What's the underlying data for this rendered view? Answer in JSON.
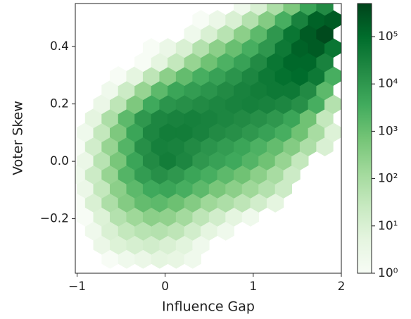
{
  "chart_data": {
    "type": "hexbin",
    "xlabel": "Influence Gap",
    "ylabel": "Voter Skew",
    "xlim": [
      -1.02,
      2.0
    ],
    "ylim": [
      -0.39,
      0.55
    ],
    "xticks": [
      {
        "value": -1,
        "label": "−1"
      },
      0,
      1,
      2
    ],
    "yticks": [
      {
        "value": -0.2,
        "label": "−0.2"
      },
      {
        "value": 0,
        "label": "0.0"
      },
      0.2,
      0.4
    ],
    "log_color": true,
    "clim": [
      1,
      500000
    ],
    "cticks": [
      {
        "value": 1,
        "label": "10⁰"
      },
      {
        "value": 10,
        "label": "10¹"
      },
      {
        "value": 100,
        "label": "10²"
      },
      {
        "value": 1000,
        "label": "10³"
      },
      {
        "value": 10000,
        "label": "10⁴"
      },
      {
        "value": 100000,
        "label": "10⁵"
      }
    ],
    "cmap": [
      "#f7fcf5",
      "#e5f5e0",
      "#c7e9c0",
      "#a1d99b",
      "#74c476",
      "#41ab5d",
      "#238b45",
      "#006d2c",
      "#00441b"
    ],
    "rows": [
      {
        "y": -0.34,
        "x": [
          -0.625,
          -0.4375,
          -0.25,
          -0.0625,
          0.125,
          0.3125
        ],
        "values": [
          1,
          2,
          3,
          5,
          4,
          2
        ]
      },
      {
        "y": -0.291,
        "x": [
          -0.71875,
          -0.53125,
          -0.34375,
          -0.15625,
          0.03125,
          0.21875,
          0.40625
        ],
        "values": [
          3,
          8,
          12,
          15,
          10,
          6,
          2
        ]
      },
      {
        "y": -0.242,
        "x": [
          -0.8125,
          -0.625,
          -0.4375,
          -0.25,
          -0.0625,
          0.125,
          0.3125,
          0.5,
          0.6875
        ],
        "values": [
          2,
          10,
          30,
          50,
          60,
          40,
          15,
          5,
          2
        ]
      },
      {
        "y": -0.193,
        "x": [
          -0.90625,
          -0.71875,
          -0.53125,
          -0.34375,
          -0.15625,
          0.03125,
          0.21875,
          0.40625,
          0.59375,
          0.78125,
          0.96875
        ],
        "values": [
          1,
          8,
          60,
          150,
          300,
          250,
          120,
          40,
          15,
          5,
          2
        ]
      },
      {
        "y": -0.144,
        "x": [
          -1,
          -0.8125,
          -0.625,
          -0.4375,
          -0.25,
          -0.0625,
          0.125,
          0.3125,
          0.5,
          0.6875,
          0.875,
          1.0625,
          1.25
        ],
        "values": [
          1,
          10,
          80,
          400,
          1200,
          1500,
          900,
          400,
          150,
          80,
          40,
          15,
          5
        ]
      },
      {
        "y": -0.095,
        "x": [
          -0.90625,
          -0.71875,
          -0.53125,
          -0.34375,
          -0.15625,
          0.03125,
          0.21875,
          0.40625,
          0.59375,
          0.78125,
          0.96875,
          1.15625,
          1.34375
        ],
        "values": [
          3,
          30,
          300,
          1500,
          4000,
          5000,
          3000,
          1500,
          600,
          300,
          150,
          60,
          20
        ]
      },
      {
        "y": -0.046,
        "x": [
          -1,
          -0.8125,
          -0.625,
          -0.4375,
          -0.25,
          -0.0625,
          0.125,
          0.3125,
          0.5,
          0.6875,
          0.875,
          1.0625,
          1.25,
          1.4375
        ],
        "values": [
          2,
          20,
          200,
          2000,
          8000,
          15000,
          10000,
          5000,
          3000,
          1500,
          800,
          300,
          100,
          20
        ]
      },
      {
        "y": 0.003,
        "x": [
          -0.90625,
          -0.71875,
          -0.53125,
          -0.34375,
          -0.15625,
          0.03125,
          0.21875,
          0.40625,
          0.59375,
          0.78125,
          0.96875,
          1.15625,
          1.34375,
          1.53125
        ],
        "values": [
          3,
          50,
          600,
          5000,
          20000,
          40000,
          25000,
          10000,
          6000,
          4000,
          2000,
          800,
          200,
          30
        ]
      },
      {
        "y": 0.052,
        "x": [
          -1,
          -0.8125,
          -0.625,
          -0.4375,
          -0.25,
          -0.0625,
          0.125,
          0.3125,
          0.5,
          0.6875,
          0.875,
          1.0625,
          1.25,
          1.4375,
          1.625,
          1.8125
        ],
        "values": [
          1,
          15,
          200,
          2000,
          15000,
          35000,
          30000,
          20000,
          12000,
          8000,
          5000,
          2500,
          1200,
          400,
          80,
          10
        ]
      },
      {
        "y": 0.101,
        "x": [
          -0.90625,
          -0.71875,
          -0.53125,
          -0.34375,
          -0.15625,
          0.03125,
          0.21875,
          0.40625,
          0.59375,
          0.78125,
          0.96875,
          1.15625,
          1.34375,
          1.53125,
          1.71875,
          1.90625
        ],
        "values": [
          2,
          30,
          500,
          5000,
          25000,
          40000,
          40000,
          30000,
          20000,
          15000,
          10000,
          6000,
          3000,
          800,
          100,
          8
        ]
      },
      {
        "y": 0.15,
        "x": [
          -0.8125,
          -0.625,
          -0.4375,
          -0.25,
          -0.0625,
          0.125,
          0.3125,
          0.5,
          0.6875,
          0.875,
          1.0625,
          1.25,
          1.4375,
          1.625,
          1.8125
        ],
        "values": [
          5,
          80,
          1500,
          10000,
          25000,
          30000,
          35000,
          30000,
          25000,
          20000,
          15000,
          10000,
          5000,
          800,
          30
        ]
      },
      {
        "y": 0.199,
        "x": [
          -0.71875,
          -0.53125,
          -0.34375,
          -0.15625,
          0.03125,
          0.21875,
          0.40625,
          0.59375,
          0.78125,
          0.96875,
          1.15625,
          1.34375,
          1.53125,
          1.71875,
          1.90625
        ],
        "values": [
          3,
          40,
          500,
          4000,
          12000,
          15000,
          20000,
          25000,
          30000,
          35000,
          30000,
          25000,
          15000,
          3000,
          60
        ]
      },
      {
        "y": 0.248,
        "x": [
          -0.625,
          -0.4375,
          -0.25,
          -0.0625,
          0.125,
          0.3125,
          0.5,
          0.6875,
          0.875,
          1.0625,
          1.25,
          1.4375,
          1.625,
          1.8125
        ],
        "values": [
          2,
          20,
          200,
          1500,
          5000,
          8000,
          12000,
          20000,
          30000,
          40000,
          50000,
          50000,
          20000,
          1500
        ]
      },
      {
        "y": 0.297,
        "x": [
          -0.53125,
          -0.34375,
          -0.15625,
          0.03125,
          0.21875,
          0.40625,
          0.59375,
          0.78125,
          0.96875,
          1.15625,
          1.34375,
          1.53125,
          1.71875,
          1.90625
        ],
        "values": [
          1,
          5,
          40,
          300,
          1200,
          3000,
          6000,
          12000,
          25000,
          50000,
          80000,
          100000,
          50000,
          3000
        ]
      },
      {
        "y": 0.346,
        "x": [
          -0.25,
          -0.0625,
          0.125,
          0.3125,
          0.5,
          0.6875,
          0.875,
          1.0625,
          1.25,
          1.4375,
          1.625,
          1.8125
        ],
        "values": [
          1,
          5,
          30,
          200,
          800,
          2500,
          6000,
          20000,
          60000,
          120000,
          120000,
          30000
        ]
      },
      {
        "y": 0.395,
        "x": [
          -0.15625,
          0.03125,
          0.21875,
          0.40625,
          0.59375,
          0.78125,
          0.96875,
          1.15625,
          1.34375,
          1.53125,
          1.71875,
          1.90625
        ],
        "values": [
          1,
          3,
          10,
          60,
          300,
          1000,
          3000,
          10000,
          50000,
          150000,
          200000,
          60000
        ]
      },
      {
        "y": 0.444,
        "x": [
          0.3125,
          0.5,
          0.6875,
          0.875,
          1.0625,
          1.25,
          1.4375,
          1.625,
          1.8125
        ],
        "values": [
          2,
          10,
          50,
          300,
          1500,
          10000,
          60000,
          200000,
          400000
        ]
      },
      {
        "y": 0.493,
        "x": [
          0.40625,
          0.59375,
          0.78125,
          0.96875,
          1.15625,
          1.34375,
          1.53125,
          1.71875,
          1.90625
        ],
        "values": [
          1,
          3,
          10,
          60,
          400,
          3000,
          30000,
          150000,
          200000
        ]
      },
      {
        "y": 0.542,
        "x": [
          0.875,
          1.0625,
          1.25,
          1.4375,
          1.625,
          1.8125
        ],
        "values": [
          2,
          10,
          80,
          500,
          5000,
          20000
        ]
      }
    ]
  }
}
